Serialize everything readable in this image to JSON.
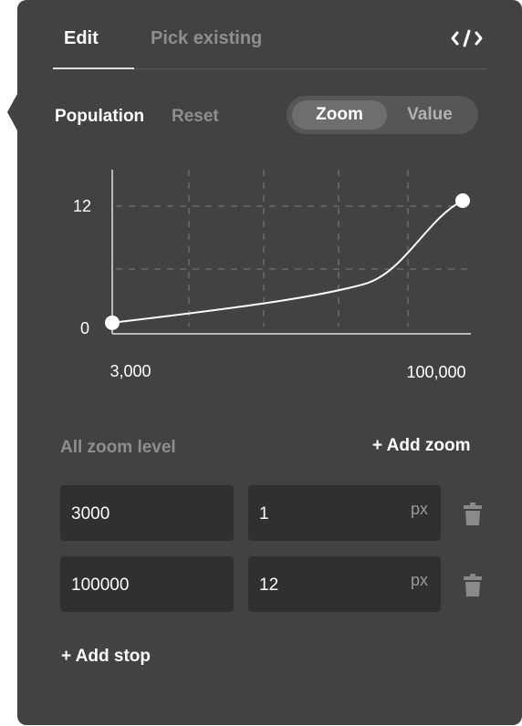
{
  "tabs": {
    "edit": "Edit",
    "pick_existing": "Pick existing"
  },
  "icons": {
    "code": "code-icon",
    "trash": "trash-icon"
  },
  "property": {
    "name": "Population",
    "reset_label": "Reset"
  },
  "mode_toggle": {
    "options": [
      "Zoom",
      "Value"
    ],
    "selected": "Zoom"
  },
  "chart_data": {
    "type": "line",
    "x": [
      3000,
      100000
    ],
    "y": [
      1,
      12
    ],
    "x_tick_labels": [
      "3,000",
      "100,000"
    ],
    "y_tick_labels": [
      "0",
      "12"
    ],
    "ylim": [
      0,
      12
    ],
    "grid": true,
    "title": "",
    "xlabel": "",
    "ylabel": ""
  },
  "stops_section": {
    "label": "All zoom level",
    "add_zoom_label": "+ Add zoom"
  },
  "stops": [
    {
      "zoom": "3000",
      "value": "1",
      "unit": "px"
    },
    {
      "zoom": "100000",
      "value": "12",
      "unit": "px"
    }
  ],
  "add_stop_label": "+ Add stop",
  "colors": {
    "panel_bg": "#424242",
    "field_bg": "#303030",
    "muted_text": "#8e8e8e",
    "text": "#ffffff"
  }
}
